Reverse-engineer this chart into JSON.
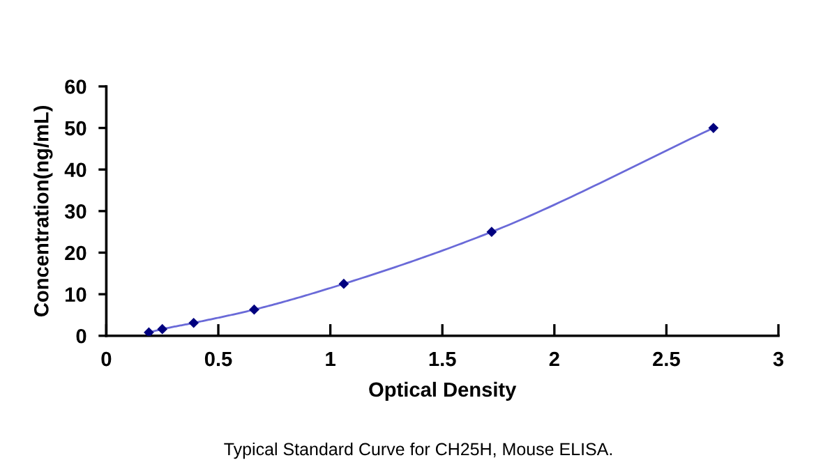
{
  "chart_data": {
    "type": "scatter",
    "title": "Typical Standard Curve for CH25H, Mouse ELISA.",
    "xlabel": "Optical Density",
    "ylabel": "Concentration(ng/mL)",
    "x": [
      0.19,
      0.25,
      0.39,
      0.66,
      1.06,
      1.72,
      2.71
    ],
    "series": [
      {
        "type": "line",
        "color": "#6a6ad8",
        "marker": "none",
        "line_style": "solid",
        "values": [
          0.8,
          1.6,
          3.1,
          6.3,
          12.5,
          25,
          50
        ]
      },
      {
        "color": "#00007f",
        "marker": "diamond",
        "values": [
          0.8,
          1.6,
          3.1,
          6.3,
          12.5,
          25,
          50
        ]
      }
    ],
    "xlim": [
      0,
      3
    ],
    "ylim": [
      0,
      60
    ],
    "xticks": [
      0,
      0.5,
      1,
      1.5,
      2,
      2.5,
      3
    ],
    "yticks": [
      0,
      10,
      20,
      30,
      40,
      50,
      60
    ]
  }
}
